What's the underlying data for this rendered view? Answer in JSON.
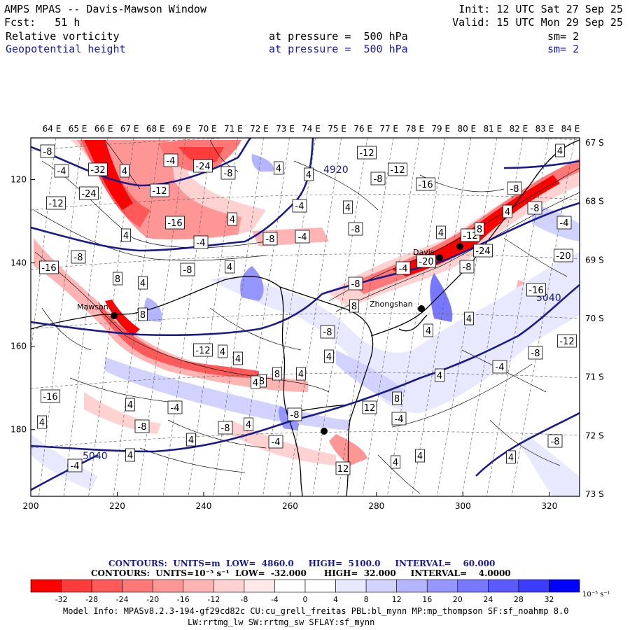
{
  "header": {
    "title": "AMPS MPAS -- Davis-Mawson Window",
    "forecast": "Fcst:   51 h",
    "init": "Init: 12 UTC Sat 27 Sep 25",
    "valid": "Valid: 15 UTC Mon 29 Sep 25",
    "field1": {
      "name": "Relative vorticity",
      "level": "at pressure =  500 hPa",
      "sm": "sm= 2"
    },
    "field2": {
      "name": "Geopotential height",
      "level": "at pressure =  500 hPa",
      "sm": "sm= 2"
    }
  },
  "map": {
    "top_longitudes": [
      "64 E",
      "65 E",
      "66 E",
      "67 E",
      "68 E",
      "69 E",
      "70 E",
      "71 E",
      "72 E",
      "73 E",
      "74 E",
      "75 E",
      "76 E",
      "77 E",
      "78 E",
      "79 E",
      "80 E",
      "81 E",
      "82 E",
      "83 E",
      "84 E"
    ],
    "right_latitudes": [
      "67 S",
      "68 S",
      "69 S",
      "70 S",
      "71 S",
      "72 S",
      "73 S"
    ],
    "x_ticks": [
      "200",
      "220",
      "240",
      "260",
      "280",
      "300",
      "320"
    ],
    "y_ticks": [
      "120",
      "140",
      "160",
      "180"
    ],
    "stations": [
      "Mawson",
      "Davis",
      "Zhongshan"
    ],
    "height_labels": [
      "4920",
      "5040",
      "5040"
    ],
    "vort_labels": [
      "-8",
      "-4",
      "-32",
      "4",
      "-4",
      "-24",
      "-8",
      "4",
      "-24",
      "-12",
      "-12",
      "-16",
      "4",
      "-4",
      "-12",
      "-8",
      "-12",
      "-16",
      "4",
      "-8",
      "-8",
      "-4",
      "4",
      "-4",
      "-8",
      "-16",
      "-8",
      "4",
      "8",
      "4",
      "-20",
      "-12",
      "-8",
      "-4",
      "-24",
      "-8",
      "-20",
      "-16",
      "8",
      "-8",
      "4",
      "8",
      "4",
      "8",
      "12",
      "8",
      "4",
      "-4",
      "-8",
      "-12",
      "-16",
      "4",
      "4",
      "-8",
      "4",
      "-8",
      "4",
      "4",
      "-4",
      "12",
      "4",
      "4",
      "-8",
      "-4",
      "4",
      "8",
      "4",
      "-12",
      "4",
      "4",
      "-4",
      "-8",
      "4",
      "-8",
      "-4",
      "4",
      "8",
      "4",
      "-8",
      "4",
      "4",
      "4",
      "-4",
      "4"
    ]
  },
  "contour_info": {
    "line1": "CONTOURS:  UNITS=m  LOW=  4860.0     HIGH=  5100.0     INTERVAL=    60.000",
    "line2": "CONTOURS:  UNITS=10⁻⁵ s⁻¹  LOW=  -32.000      HIGH=  32.000     INTERVAL=    4.0000"
  },
  "colorbar": {
    "colors": [
      "#ff0000",
      "#ff3c3c",
      "#ff5a5a",
      "#ff7878",
      "#ff9696",
      "#ffb4b4",
      "#ffd2d2",
      "#ffe8e8",
      "#ffffff",
      "#ffffff",
      "#e8e8ff",
      "#d2d2ff",
      "#b4b4ff",
      "#9696ff",
      "#7878ff",
      "#5a5aff",
      "#3c3cff",
      "#0000ff"
    ],
    "labels": [
      "-32",
      "-28",
      "-24",
      "-20",
      "-16",
      "-12",
      "-8",
      "-4",
      "0",
      "4",
      "8",
      "12",
      "16",
      "20",
      "24",
      "28",
      "32"
    ],
    "units": "10⁻⁵ s⁻¹"
  },
  "model_info": {
    "line1": "Model Info: MPASv8.2.3-194-gf29cd82c CU:cu_grell_freitas PBL:bl_mynn MP:mp_thompson SF:sf_noahmp 8.0",
    "line2": "LW:rrtmg_lw SW:rrtmg_sw SFLAY:sf_mynn"
  },
  "colors": {
    "height_contour": "#1a1a8c",
    "text_blue": "#1a1ab0"
  }
}
